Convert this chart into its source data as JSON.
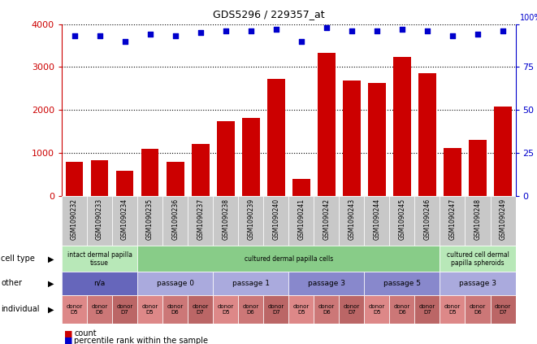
{
  "title": "GDS5296 / 229357_at",
  "samples": [
    "GSM1090232",
    "GSM1090233",
    "GSM1090234",
    "GSM1090235",
    "GSM1090236",
    "GSM1090237",
    "GSM1090238",
    "GSM1090239",
    "GSM1090240",
    "GSM1090241",
    "GSM1090242",
    "GSM1090243",
    "GSM1090244",
    "GSM1090245",
    "GSM1090246",
    "GSM1090247",
    "GSM1090248",
    "GSM1090249"
  ],
  "counts": [
    800,
    840,
    580,
    1090,
    790,
    1220,
    1740,
    1820,
    2720,
    390,
    3340,
    2680,
    2630,
    3230,
    2850,
    1120,
    1310,
    2080
  ],
  "percentiles": [
    93,
    93,
    90,
    94,
    93,
    95,
    96,
    96,
    97,
    90,
    98,
    96,
    96,
    97,
    96,
    93,
    94,
    96
  ],
  "bar_color": "#cc0000",
  "dot_color": "#0000cc",
  "ylim_left": [
    0,
    4000
  ],
  "ylim_right": [
    0,
    100
  ],
  "yticks_left": [
    0,
    1000,
    2000,
    3000,
    4000
  ],
  "yticks_right": [
    0,
    25,
    50,
    75,
    100
  ],
  "sample_box_color": "#c8c8c8",
  "cell_type_groups": [
    {
      "label": "intact dermal papilla\ntissue",
      "start": 0,
      "end": 3,
      "color": "#b8e8b8"
    },
    {
      "label": "cultured dermal papilla cells",
      "start": 3,
      "end": 15,
      "color": "#88cc88"
    },
    {
      "label": "cultured cell dermal\npapilla spheroids",
      "start": 15,
      "end": 18,
      "color": "#b8e8b8"
    }
  ],
  "other_groups": [
    {
      "label": "n/a",
      "start": 0,
      "end": 3,
      "color": "#6666bb"
    },
    {
      "label": "passage 0",
      "start": 3,
      "end": 6,
      "color": "#aaaadd"
    },
    {
      "label": "passage 1",
      "start": 6,
      "end": 9,
      "color": "#aaaadd"
    },
    {
      "label": "passage 3",
      "start": 9,
      "end": 12,
      "color": "#8888cc"
    },
    {
      "label": "passage 5",
      "start": 12,
      "end": 15,
      "color": "#8888cc"
    },
    {
      "label": "passage 3",
      "start": 15,
      "end": 18,
      "color": "#aaaadd"
    }
  ],
  "individual_groups": [
    {
      "label": "donor\nD5",
      "color": "#dd8888"
    },
    {
      "label": "donor\nD6",
      "color": "#cc7777"
    },
    {
      "label": "donor\nD7",
      "color": "#bb6666"
    },
    {
      "label": "donor\nD5",
      "color": "#dd8888"
    },
    {
      "label": "donor\nD6",
      "color": "#cc7777"
    },
    {
      "label": "donor\nD7",
      "color": "#bb6666"
    },
    {
      "label": "donor\nD5",
      "color": "#dd8888"
    },
    {
      "label": "donor\nD6",
      "color": "#cc7777"
    },
    {
      "label": "donor\nD7",
      "color": "#bb6666"
    },
    {
      "label": "donor\nD5",
      "color": "#dd8888"
    },
    {
      "label": "donor\nD6",
      "color": "#cc7777"
    },
    {
      "label": "donor\nD7",
      "color": "#bb6666"
    },
    {
      "label": "donor\nD5",
      "color": "#dd8888"
    },
    {
      "label": "donor\nD6",
      "color": "#cc7777"
    },
    {
      "label": "donor\nD7",
      "color": "#bb6666"
    },
    {
      "label": "donor\nD5",
      "color": "#dd8888"
    },
    {
      "label": "donor\nD6",
      "color": "#cc7777"
    },
    {
      "label": "donor\nD7",
      "color": "#bb6666"
    }
  ],
  "row_labels": [
    "cell type",
    "other",
    "individual"
  ],
  "legend_count_color": "#cc0000",
  "legend_dot_color": "#0000cc",
  "axis_label_color_left": "#cc0000",
  "axis_label_color_right": "#0000cc"
}
